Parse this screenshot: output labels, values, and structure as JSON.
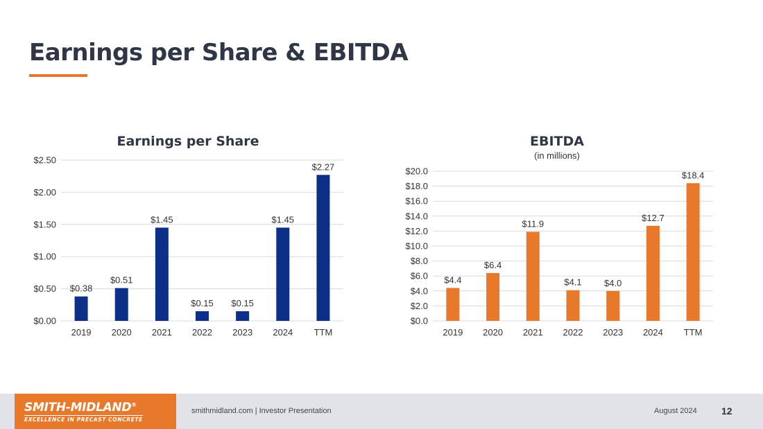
{
  "slide": {
    "title": "Earnings per Share & EBITDA"
  },
  "colors": {
    "title": "#2f3645",
    "accent": "#e8782a",
    "eps_bar": "#0c2f87",
    "ebitda_bar": "#e8782a",
    "footer_bg": "#e1e3e8"
  },
  "chart_data": [
    {
      "type": "bar",
      "title": "Earnings per Share",
      "subtitle": "",
      "categories": [
        "2019",
        "2020",
        "2021",
        "2022",
        "2023",
        "2024",
        "TTM"
      ],
      "values": [
        0.38,
        0.51,
        1.45,
        0.15,
        0.15,
        1.45,
        2.27
      ],
      "data_labels": [
        "$0.38",
        "$0.51",
        "$1.45",
        "$0.15",
        "$0.15",
        "$1.45",
        "$2.27"
      ],
      "y_ticks": [
        0,
        0.5,
        1.0,
        1.5,
        2.0,
        2.5
      ],
      "y_tick_labels": [
        "$0.00",
        "$0.50",
        "$1.00",
        "$1.50",
        "$2.00",
        "$2.50"
      ],
      "ylim": [
        0,
        2.5
      ],
      "grid": true,
      "legend": "none",
      "xlabel": "",
      "ylabel": ""
    },
    {
      "type": "bar",
      "title": "EBITDA",
      "subtitle": "(in millions)",
      "categories": [
        "2019",
        "2020",
        "2021",
        "2022",
        "2023",
        "2024",
        "TTM"
      ],
      "values": [
        4.4,
        6.4,
        11.9,
        4.1,
        4.0,
        12.7,
        18.4
      ],
      "data_labels": [
        "$4.4",
        "$6.4",
        "$11.9",
        "$4.1",
        "$4.0",
        "$12.7",
        "$18.4"
      ],
      "y_ticks": [
        0,
        2,
        4,
        6,
        8,
        10,
        12,
        14,
        16,
        18,
        20
      ],
      "y_tick_labels": [
        "$0.0",
        "$2.0",
        "$4.0",
        "$6.0",
        "$8.0",
        "$10.0",
        "$12.0",
        "$14.0",
        "$16.0",
        "$18.0",
        "$20.0"
      ],
      "ylim": [
        0,
        20
      ],
      "grid": true,
      "legend": "none",
      "xlabel": "",
      "ylabel": ""
    }
  ],
  "footer": {
    "logo_name": "SMITH-MIDLAND",
    "logo_mark": "®",
    "logo_tagline": "EXCELLENCE IN PRECAST CONCRETE",
    "source": "smithmidland.com | Investor Presentation",
    "date": "August 2024",
    "page": "12"
  }
}
